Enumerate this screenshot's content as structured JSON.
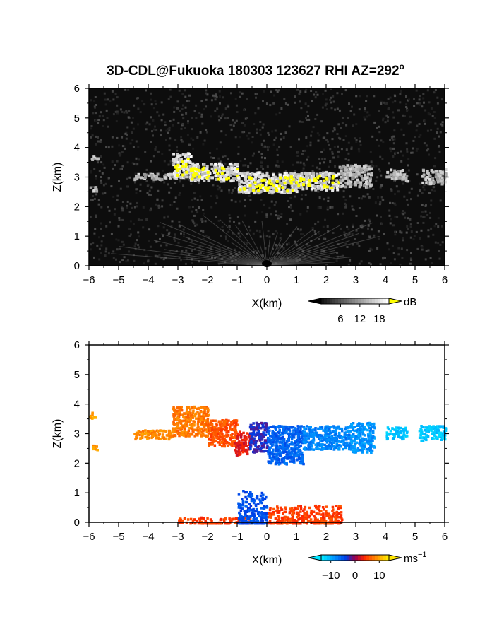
{
  "title": "3D-CDL@Fukuoka 180303 123627 RHI AZ=292",
  "title_superscript": "o",
  "colors": {
    "panel_background_top": "#0d0d0d",
    "highlight": "#ffff00",
    "negative_velocity": "#0050ff",
    "positive_velocity": "#ff2a00",
    "strong_negative": "#00e5ff",
    "strong_positive": "#ffd400"
  },
  "chart_data": [
    {
      "type": "heatmap",
      "quantity": "backscatter intensity (RHI)",
      "xlabel": "X(km)",
      "ylabel": "Z(km)",
      "xlim": [
        -6,
        6
      ],
      "ylim": [
        0,
        6
      ],
      "xticks": [
        "-6",
        "-5",
        "-4",
        "-3",
        "-2",
        "-1",
        "0",
        "1",
        "2",
        "3",
        "4",
        "5",
        "6"
      ],
      "yticks": [
        "0",
        "1",
        "2",
        "3",
        "4",
        "5",
        "6"
      ],
      "colorbar": {
        "unit": "dB",
        "ticks": [
          "6",
          "12",
          "18"
        ],
        "range": [
          0,
          21
        ]
      },
      "features": [
        {
          "x": [
            -6,
            -5.7
          ],
          "z": [
            2.55,
            2.7
          ],
          "level": "moderate"
        },
        {
          "x": [
            -6,
            -5.7
          ],
          "z": [
            3.6,
            3.75
          ],
          "level": "moderate"
        },
        {
          "x": [
            -4.5,
            -3.0
          ],
          "z": [
            2.95,
            3.15
          ],
          "level": "moderate"
        },
        {
          "x": [
            -3.2,
            -2.6
          ],
          "z": [
            3.0,
            3.85
          ],
          "level": "strong"
        },
        {
          "x": [
            -2.6,
            -1.0
          ],
          "z": [
            2.9,
            3.5
          ],
          "level": "strong"
        },
        {
          "x": [
            -1.0,
            1.0
          ],
          "z": [
            2.5,
            3.2
          ],
          "level": "strong"
        },
        {
          "x": [
            1.0,
            2.4
          ],
          "z": [
            2.6,
            3.2
          ],
          "level": "strong"
        },
        {
          "x": [
            2.4,
            3.5
          ],
          "z": [
            2.7,
            3.45
          ],
          "level": "moderate"
        },
        {
          "x": [
            4.0,
            4.7
          ],
          "z": [
            2.9,
            3.3
          ],
          "level": "moderate"
        },
        {
          "x": [
            5.2,
            6.0
          ],
          "z": [
            2.8,
            3.3
          ],
          "level": "moderate"
        },
        {
          "x": [
            -1.0,
            1.0
          ],
          "z": [
            0.0,
            0.6
          ],
          "level": "near-surface clutter"
        }
      ]
    },
    {
      "type": "heatmap",
      "quantity": "radial velocity (RHI)",
      "xlabel": "X(km)",
      "ylabel": "Z(km)",
      "xlim": [
        -6,
        6
      ],
      "ylim": [
        0,
        6
      ],
      "xticks": [
        "-6",
        "-5",
        "-4",
        "-3",
        "-2",
        "-1",
        "0",
        "1",
        "2",
        "3",
        "4",
        "5",
        "6"
      ],
      "yticks": [
        "0",
        "1",
        "2",
        "3",
        "4",
        "5",
        "6"
      ],
      "colorbar": {
        "unit": "ms",
        "unit_superscript": "−1",
        "ticks": [
          "−10",
          "0",
          "10"
        ],
        "range": [
          -14,
          14
        ]
      },
      "features": [
        {
          "x": [
            -6,
            -5.8
          ],
          "z": [
            3.55,
            3.75
          ],
          "velocity": 10
        },
        {
          "x": [
            -5.95,
            -5.75
          ],
          "z": [
            2.45,
            2.65
          ],
          "velocity": 10
        },
        {
          "x": [
            -4.5,
            -3.2
          ],
          "z": [
            2.85,
            3.15
          ],
          "velocity": 9
        },
        {
          "x": [
            -3.2,
            -2.0
          ],
          "z": [
            2.95,
            3.95
          ],
          "velocity": 8
        },
        {
          "x": [
            -2.0,
            -1.0
          ],
          "z": [
            2.6,
            3.5
          ],
          "velocity": 6
        },
        {
          "x": [
            -1.1,
            -0.6
          ],
          "z": [
            2.3,
            3.1
          ],
          "velocity": 3
        },
        {
          "x": [
            -0.6,
            0.0
          ],
          "z": [
            2.4,
            3.4
          ],
          "velocity": -3
        },
        {
          "x": [
            0.0,
            1.2
          ],
          "z": [
            2.0,
            3.3
          ],
          "velocity": -6
        },
        {
          "x": [
            1.2,
            2.8
          ],
          "z": [
            2.5,
            3.3
          ],
          "velocity": -8
        },
        {
          "x": [
            2.8,
            3.6
          ],
          "z": [
            2.4,
            3.4
          ],
          "velocity": -9
        },
        {
          "x": [
            4.0,
            4.7
          ],
          "z": [
            2.85,
            3.25
          ],
          "velocity": -12
        },
        {
          "x": [
            5.1,
            6.0
          ],
          "z": [
            2.8,
            3.3
          ],
          "velocity": -12
        },
        {
          "x": [
            -3.0,
            -0.6
          ],
          "z": [
            0.0,
            0.2
          ],
          "velocity": 5
        },
        {
          "x": [
            -1.0,
            0.0
          ],
          "z": [
            0.0,
            1.1
          ],
          "velocity": -5
        },
        {
          "x": [
            0.0,
            2.5
          ],
          "z": [
            0.0,
            0.6
          ],
          "velocity": 5
        }
      ]
    }
  ]
}
